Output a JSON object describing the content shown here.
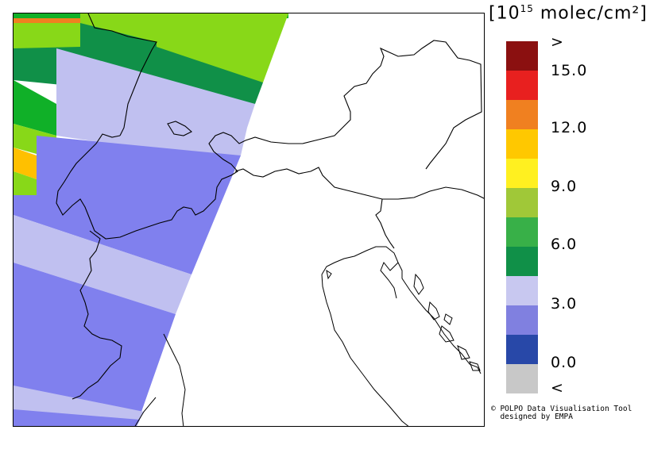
{
  "units": {
    "base": "[10",
    "exp": "15",
    "rest": " molec/cm²]"
  },
  "legend": {
    "colors": [
      "#8b1010",
      "#e8201f",
      "#f08020",
      "#ffc800",
      "#fff020",
      "#a0c838",
      "#38b048",
      "#109048",
      "#c8c8f0",
      "#8080e0",
      "#2848a8",
      "#c8c8c8"
    ],
    "labels": [
      ">",
      "15.0",
      "12.0",
      "9.0",
      "6.0",
      "3.0",
      "0.0",
      "<"
    ]
  },
  "credit": {
    "line1": "© POLPO Data Visualisation Tool",
    "line2": "  designed by EMPA"
  },
  "map": {
    "pixel_colors": {
      "light_green": "#88d818",
      "dark_green": "#109048",
      "green": "#10b028",
      "orange": "#f08020",
      "yellow": "#ffc000",
      "lavender": "#c0c0f0",
      "blue_violet": "#8080ee"
    }
  }
}
